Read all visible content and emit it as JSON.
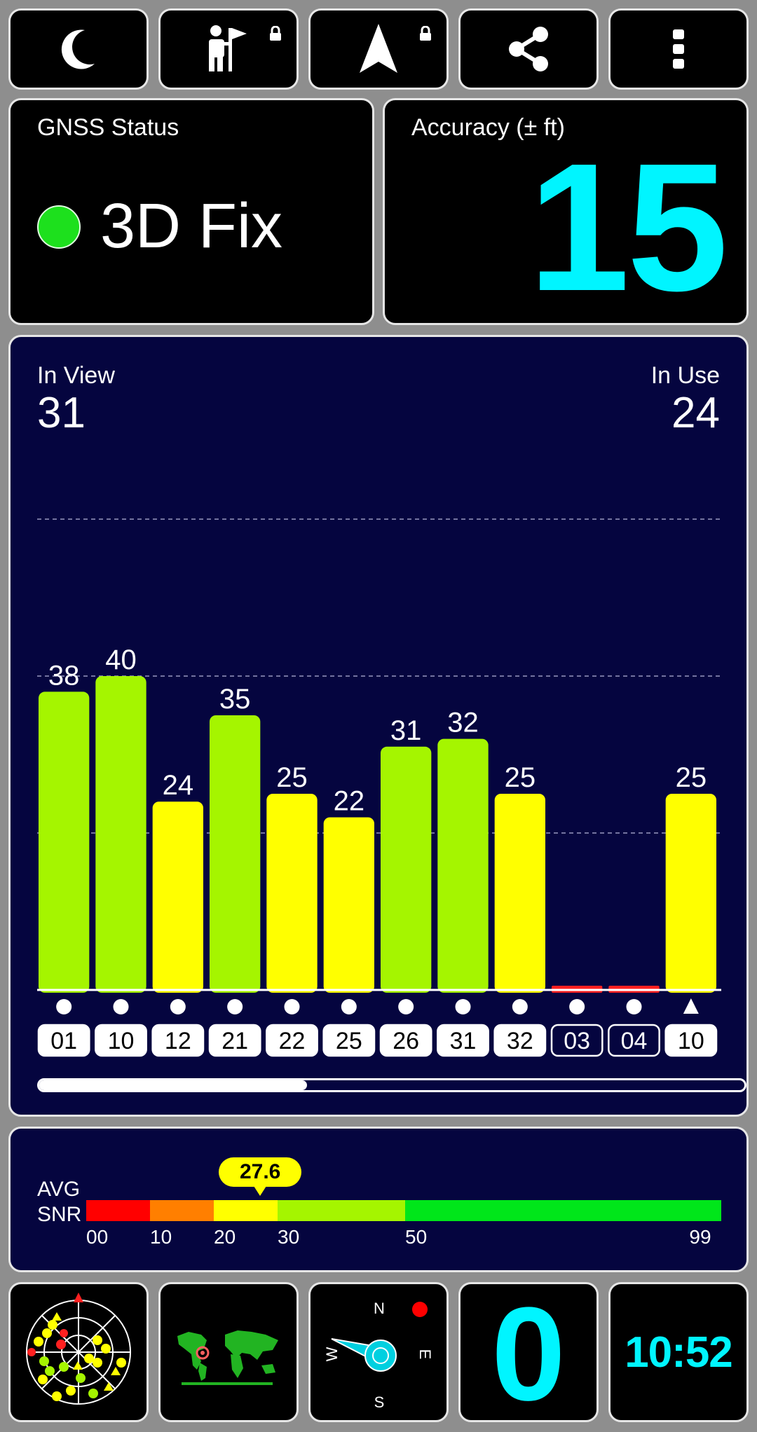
{
  "toolbar": {
    "items": [
      {
        "name": "night-mode",
        "icon": "moon-icon"
      },
      {
        "name": "guide",
        "icon": "guide-flag-icon",
        "locked": true
      },
      {
        "name": "navigate",
        "icon": "navigation-arrow-icon",
        "locked": true
      },
      {
        "name": "share",
        "icon": "share-icon"
      },
      {
        "name": "more",
        "icon": "more-vertical-icon"
      }
    ]
  },
  "status": {
    "label": "GNSS Status",
    "value": "3D Fix",
    "indicator_color": "#1de01d"
  },
  "accuracy": {
    "label": "Accuracy (± ft)",
    "value": "15"
  },
  "satellites": {
    "in_view_label": "In View",
    "in_view": "31",
    "in_use_label": "In Use",
    "in_use": "24"
  },
  "chart_data": {
    "type": "bar",
    "ylim": [
      0,
      99
    ],
    "gridlines": [
      20,
      40,
      60
    ],
    "scroll_position": 0.38,
    "bars": [
      {
        "prn": "01",
        "snr": 38,
        "shape": "circle",
        "in_use": true
      },
      {
        "prn": "10",
        "snr": 40,
        "shape": "circle",
        "in_use": true
      },
      {
        "prn": "12",
        "snr": 24,
        "shape": "circle",
        "in_use": true
      },
      {
        "prn": "21",
        "snr": 35,
        "shape": "circle",
        "in_use": true
      },
      {
        "prn": "22",
        "snr": 25,
        "shape": "circle",
        "in_use": true
      },
      {
        "prn": "25",
        "snr": 22,
        "shape": "circle",
        "in_use": true
      },
      {
        "prn": "26",
        "snr": 31,
        "shape": "circle",
        "in_use": true
      },
      {
        "prn": "31",
        "snr": 32,
        "shape": "circle",
        "in_use": true
      },
      {
        "prn": "32",
        "snr": 25,
        "shape": "circle",
        "in_use": true
      },
      {
        "prn": "03",
        "snr": 0,
        "shape": "circle",
        "in_use": false
      },
      {
        "prn": "04",
        "snr": 0,
        "shape": "circle",
        "in_use": false
      },
      {
        "prn": "10",
        "snr": 25,
        "shape": "triangle",
        "in_use": true
      }
    ]
  },
  "snr_scale": {
    "label_line1": "AVG",
    "label_line2": "SNR",
    "avg": "27.6",
    "avg_value": 27.6,
    "ticks": [
      "00",
      "10",
      "20",
      "30",
      "50",
      "99"
    ],
    "segments": [
      {
        "from": 0,
        "to": 10,
        "color": "#ff0000"
      },
      {
        "from": 10,
        "to": 20,
        "color": "#ff7f00"
      },
      {
        "from": 20,
        "to": 30,
        "color": "#ffff00"
      },
      {
        "from": 30,
        "to": 50,
        "color": "#a5f500"
      },
      {
        "from": 50,
        "to": 99,
        "color": "#00e61a"
      }
    ]
  },
  "bottom": {
    "radar_icon": "sky-plot-icon",
    "map_icon": "world-map-icon",
    "compass": {
      "n": "N",
      "e": "E",
      "s": "S",
      "w": "W"
    },
    "speed": "0",
    "time": "10:52"
  }
}
